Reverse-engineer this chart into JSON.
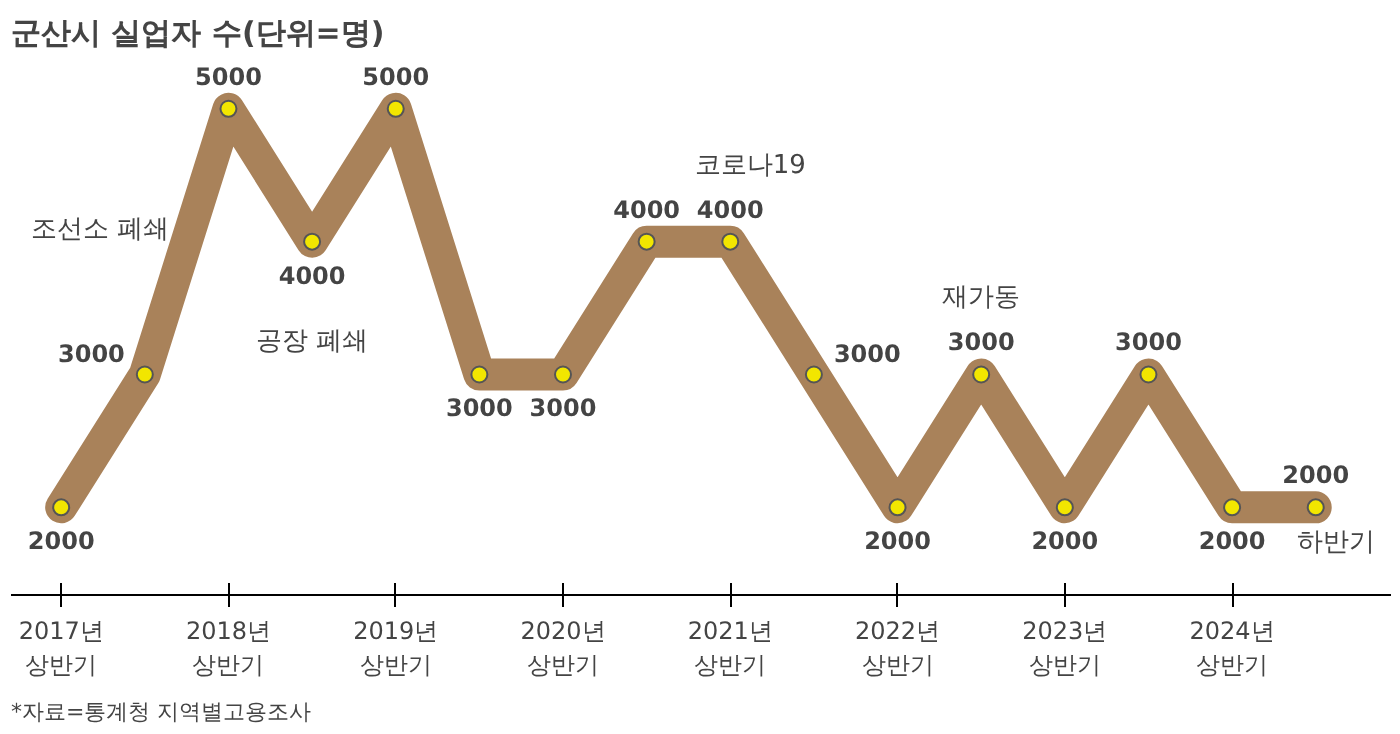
{
  "chart_data": {
    "type": "line",
    "title": "군산시 실업자 수(단위=명)",
    "categories": [
      "2017년\n상반기",
      null,
      "2018년\n상반기",
      null,
      "2019년\n상반기",
      null,
      "2020년\n상반기",
      null,
      "2021년\n상반기",
      null,
      "2022년\n상반기",
      null,
      "2023년\n상반기",
      null,
      "2024년\n상반기",
      null
    ],
    "series": [
      {
        "color": "#a9825a",
        "values": [
          2000,
          3000,
          5000,
          4000,
          5000,
          3000,
          3000,
          4000,
          4000,
          3000,
          2000,
          3000,
          2000,
          3000,
          2000,
          2000
        ]
      }
    ],
    "marker": "circle",
    "data_labels": true,
    "annotations": [
      "조선소 폐쇄",
      "공장 폐쇄",
      "코로나19",
      "재가동",
      "하반기",
      "*자료=통계청 지역별고용조사"
    ]
  }
}
